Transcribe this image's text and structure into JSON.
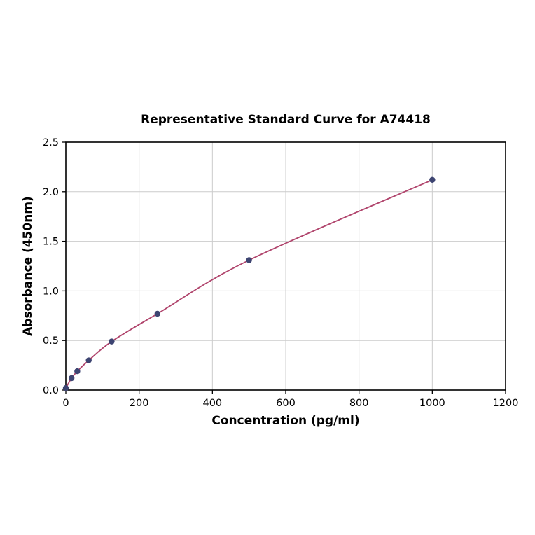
{
  "chart_data": {
    "type": "scatter",
    "title": "Representative Standard Curve for A74418",
    "xlabel": "Concentration (pg/ml)",
    "ylabel": "Absorbance (450nm)",
    "xlim": [
      0,
      1200
    ],
    "ylim": [
      0,
      2.5
    ],
    "x_ticks": [
      0,
      200,
      400,
      600,
      800,
      1000,
      1200
    ],
    "y_ticks": [
      0.0,
      0.5,
      1.0,
      1.5,
      2.0,
      2.5
    ],
    "grid": true,
    "legend": "none",
    "curve_color": "#b0446c",
    "marker_color": "#3d4471",
    "grid_color": "#cccccc",
    "points": [
      {
        "x": 0,
        "y": 0.02
      },
      {
        "x": 15.6,
        "y": 0.12
      },
      {
        "x": 31.25,
        "y": 0.19
      },
      {
        "x": 62.5,
        "y": 0.3
      },
      {
        "x": 125,
        "y": 0.49
      },
      {
        "x": 250,
        "y": 0.77
      },
      {
        "x": 500,
        "y": 1.31
      },
      {
        "x": 1000,
        "y": 2.12
      }
    ]
  }
}
